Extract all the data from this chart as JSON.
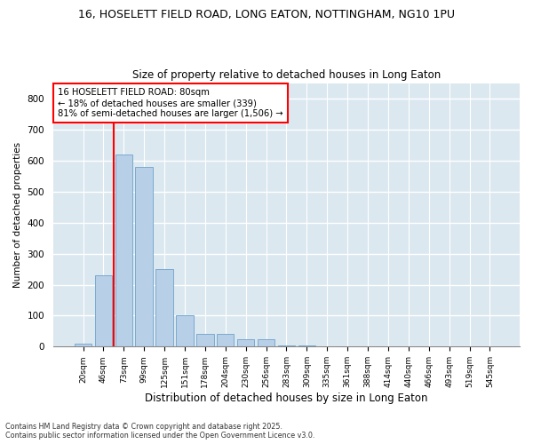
{
  "title_line1": "16, HOSELETT FIELD ROAD, LONG EATON, NOTTINGHAM, NG10 1PU",
  "title_line2": "Size of property relative to detached houses in Long Eaton",
  "xlabel": "Distribution of detached houses by size in Long Eaton",
  "ylabel": "Number of detached properties",
  "bar_color": "#b8cfe8",
  "bar_edge_color": "#7aaad0",
  "background_color": "#dce8f0",
  "fig_background_color": "#ffffff",
  "grid_color": "#ffffff",
  "categories": [
    "20sqm",
    "46sqm",
    "73sqm",
    "99sqm",
    "125sqm",
    "151sqm",
    "178sqm",
    "204sqm",
    "230sqm",
    "256sqm",
    "283sqm",
    "309sqm",
    "335sqm",
    "361sqm",
    "388sqm",
    "414sqm",
    "440sqm",
    "466sqm",
    "493sqm",
    "519sqm",
    "545sqm"
  ],
  "values": [
    10,
    230,
    620,
    580,
    250,
    100,
    40,
    40,
    25,
    25,
    5,
    3,
    0,
    0,
    0,
    0,
    0,
    0,
    0,
    0,
    0
  ],
  "ylim": [
    0,
    850
  ],
  "yticks": [
    0,
    100,
    200,
    300,
    400,
    500,
    600,
    700,
    800
  ],
  "property_label": "16 HOSELETT FIELD ROAD: 80sqm",
  "annotation_line2": "← 18% of detached houses are smaller (339)",
  "annotation_line3": "81% of semi-detached houses are larger (1,506) →",
  "vline_position": 1.5,
  "footnote_line1": "Contains HM Land Registry data © Crown copyright and database right 2025.",
  "footnote_line2": "Contains public sector information licensed under the Open Government Licence v3.0."
}
